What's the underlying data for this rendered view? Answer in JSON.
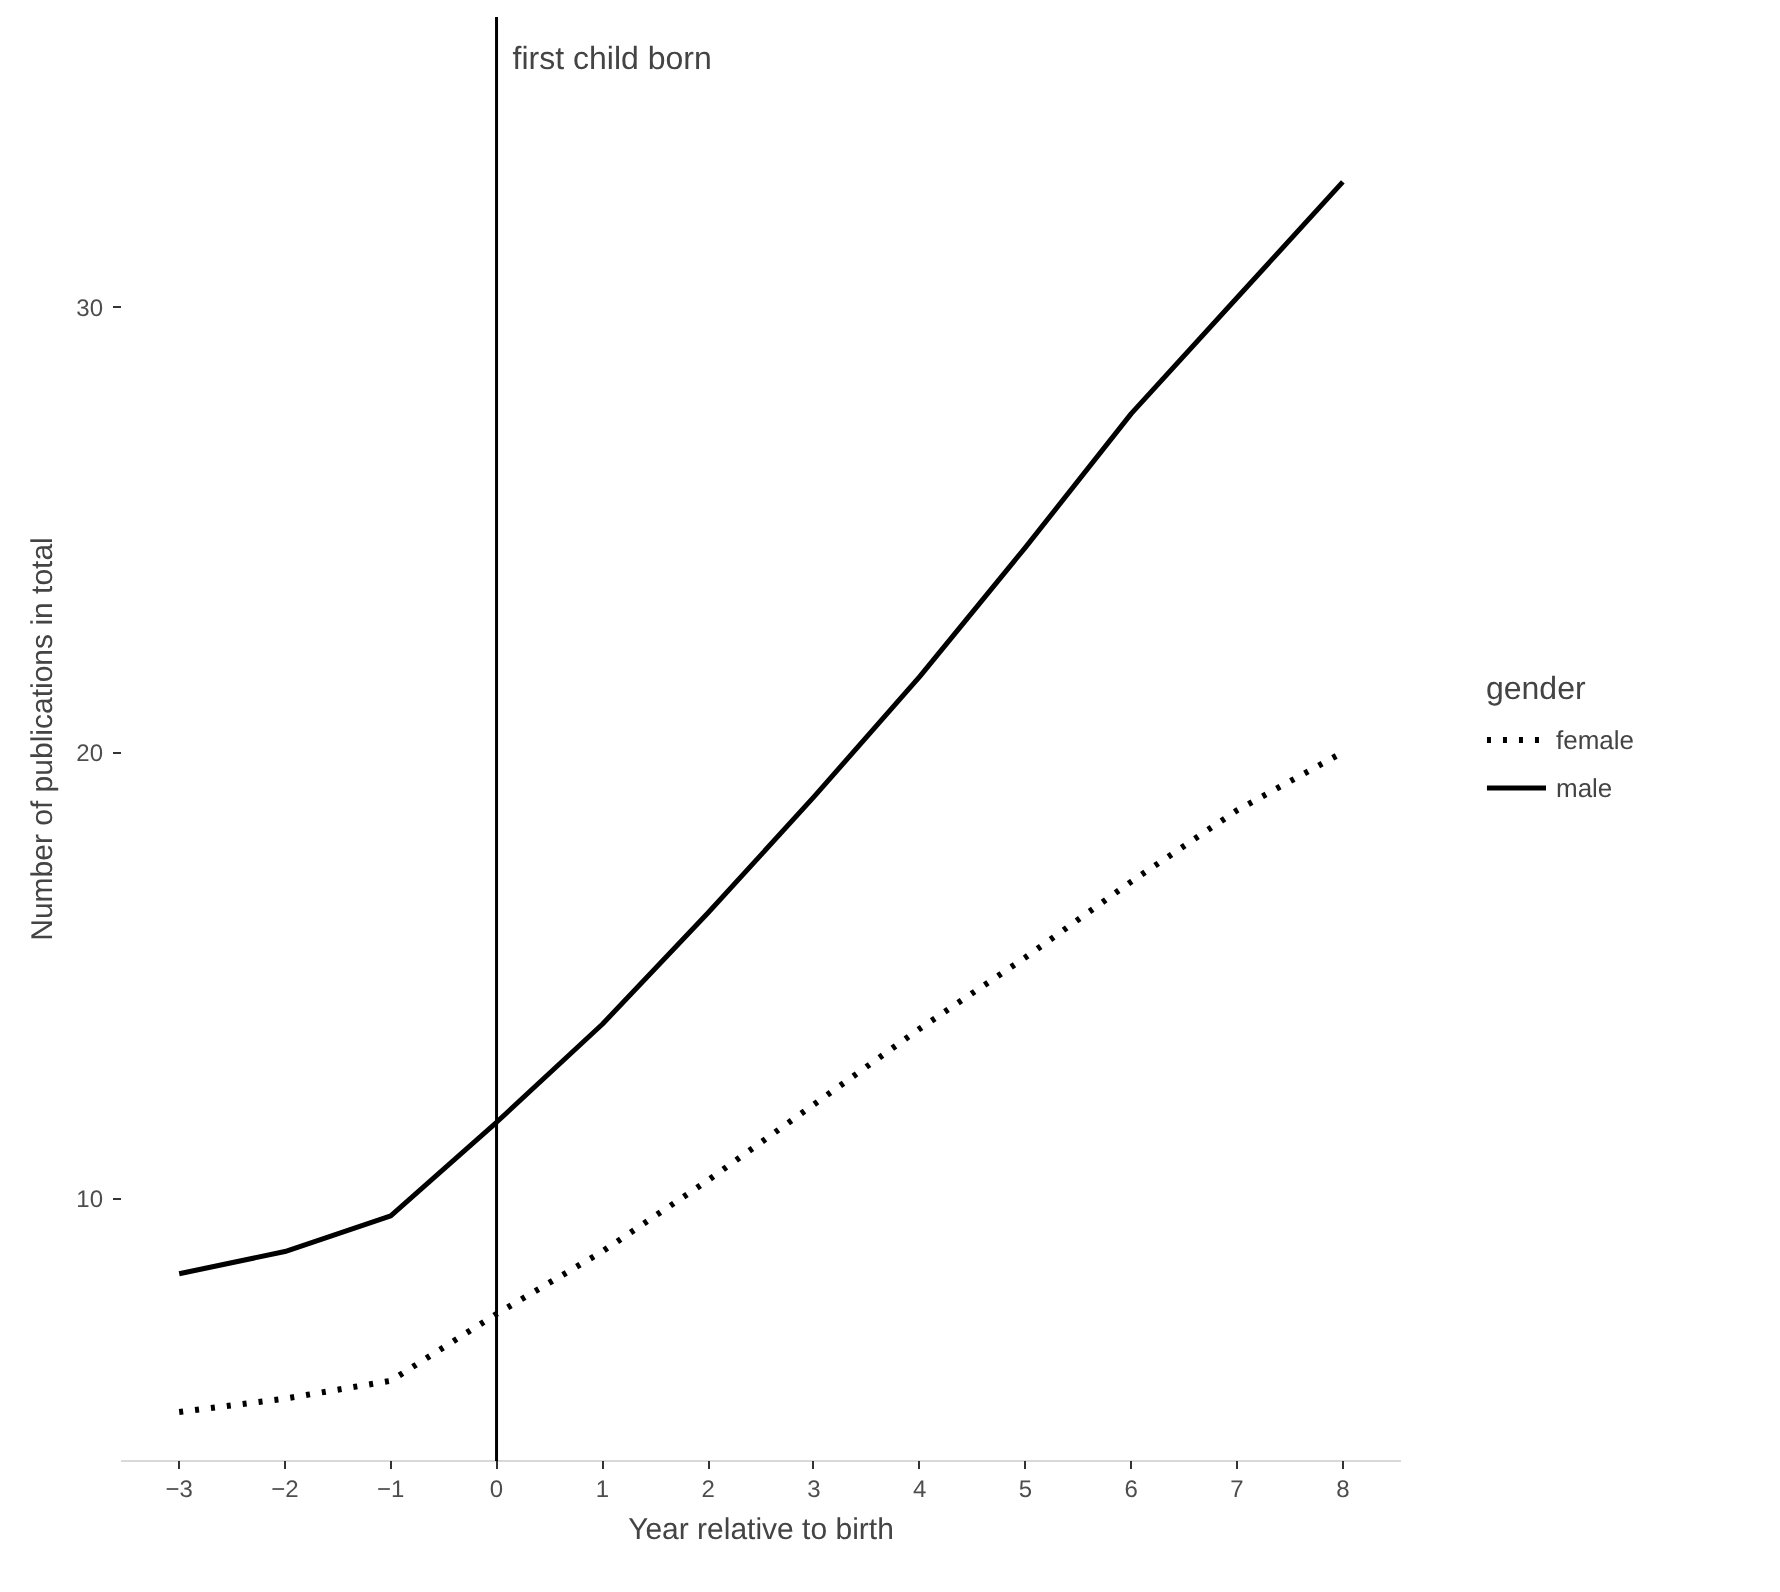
{
  "chart_data": {
    "type": "line",
    "xlabel": "Year relative to birth",
    "ylabel": "Number of publications in total",
    "legend_title": "gender",
    "x": [
      -3,
      -2,
      -1,
      0,
      1,
      2,
      3,
      4,
      5,
      6,
      7,
      8
    ],
    "series": [
      {
        "name": "female",
        "color": "#000000",
        "line_style": "dotted",
        "values": [
          5.2,
          5.5,
          5.9,
          7.4,
          8.8,
          10.4,
          12.1,
          13.8,
          15.4,
          17.1,
          18.7,
          20.0
        ]
      },
      {
        "name": "male",
        "color": "#000000",
        "line_style": "solid",
        "values": [
          8.3,
          8.8,
          9.6,
          11.7,
          13.9,
          16.4,
          19.0,
          21.7,
          24.6,
          27.6,
          30.2,
          32.8
        ]
      }
    ],
    "xlim": [
      -3.55,
      8.55
    ],
    "ylim": [
      4.1,
      36.5
    ],
    "xticks": [
      -3,
      -2,
      -1,
      0,
      1,
      2,
      3,
      4,
      5,
      6,
      7,
      8
    ],
    "yticks": [
      10,
      20,
      30
    ],
    "ref_lines": [
      {
        "axis": "x",
        "value": 0,
        "label": "first child born"
      }
    ],
    "grid": false,
    "legend": "right"
  }
}
